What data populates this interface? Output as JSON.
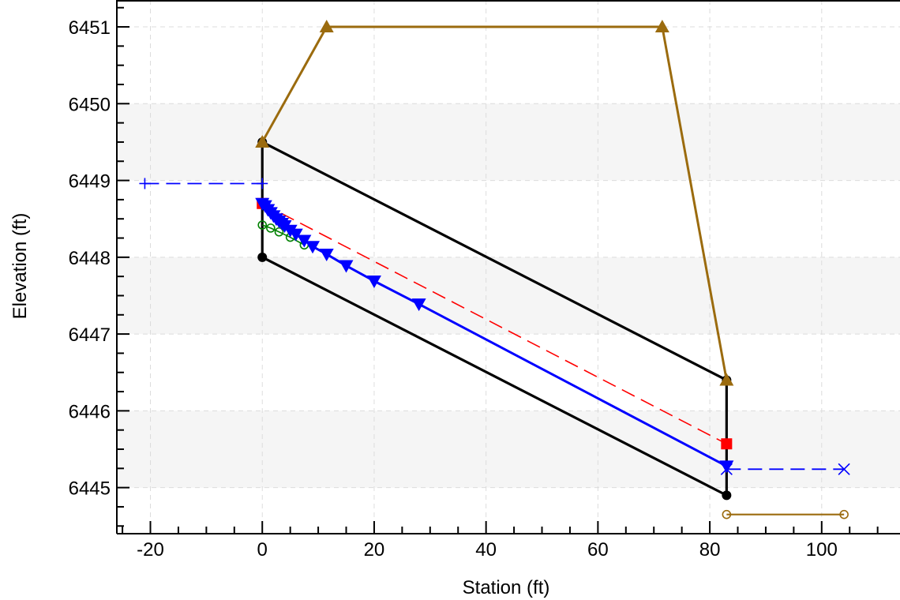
{
  "chart_data": {
    "type": "line",
    "title": "",
    "xlabel": "Station (ft)",
    "ylabel": "Elevation (ft)",
    "xlim": [
      -26,
      114
    ],
    "ylim": [
      6444.4,
      6451.35
    ],
    "xticks": [
      -20,
      0,
      20,
      40,
      60,
      80,
      100
    ],
    "yticks": [
      6445,
      6446,
      6447,
      6448,
      6449,
      6450,
      6451
    ],
    "xtick_labels": [
      "-20",
      "0",
      "20",
      "40",
      "60",
      "80",
      "100"
    ],
    "ytick_labels": [
      "6445",
      "6446",
      "6447",
      "6448",
      "6449",
      "6450",
      "6451"
    ],
    "grid": true,
    "legend": "none",
    "colors": {
      "culvert": "#000000",
      "embankment": "#9b6b0e",
      "energy_grade": "#ff0000",
      "water_surface": "#0000ff",
      "critical_depth": "#008000",
      "headwater": "#0000ff",
      "tailwater": "#0000ff",
      "outlet_channel": "#9b6b0e",
      "band": "#f5f5f5",
      "grid": "#dcdcdc"
    },
    "series": [
      {
        "key": "culvert_outline",
        "style": "solid",
        "marker": "circle",
        "color": "#000000",
        "x": [
          0,
          0,
          83,
          83,
          0
        ],
        "y": [
          6449.5,
          6448.0,
          6444.9,
          6446.4,
          6449.5
        ],
        "marker_points": [
          [
            0,
            6449.5
          ],
          [
            0,
            6448.0
          ],
          [
            83,
            6444.9
          ],
          [
            83,
            6446.4
          ]
        ]
      },
      {
        "key": "embankment_crest",
        "style": "solid",
        "marker": "triangle-up",
        "color": "#9b6b0e",
        "x": [
          0,
          11.5,
          71.5,
          83
        ],
        "y": [
          6449.5,
          6451.0,
          6451.0,
          6446.4
        ]
      },
      {
        "key": "energy_grade_line",
        "style": "dashed",
        "marker": "square",
        "color": "#ff0000",
        "x": [
          0,
          83
        ],
        "y": [
          6448.7,
          6445.57
        ],
        "marker_points": [
          [
            0,
            6448.7
          ],
          [
            83,
            6445.57
          ]
        ]
      },
      {
        "key": "water_surface_profile",
        "style": "solid",
        "marker": "triangle-down",
        "color": "#0000ff",
        "x": [
          0,
          0.5,
          1,
          1.5,
          2,
          2.5,
          3,
          3.5,
          4,
          5,
          6,
          7.5,
          9,
          11.5,
          15,
          20,
          28,
          83
        ],
        "y": [
          6448.7,
          6448.67,
          6448.62,
          6448.58,
          6448.54,
          6448.5,
          6448.47,
          6448.44,
          6448.41,
          6448.35,
          6448.3,
          6448.22,
          6448.14,
          6448.04,
          6447.89,
          6447.69,
          6447.39,
          6445.28
        ]
      },
      {
        "key": "critical_depth_line",
        "style": "solid",
        "marker": "circle-open",
        "color": "#008000",
        "x": [
          0,
          1.5,
          3,
          5,
          7.5
        ],
        "y": [
          6448.42,
          6448.38,
          6448.33,
          6448.26,
          6448.16
        ]
      },
      {
        "key": "headwater",
        "style": "dashed",
        "marker": "plus",
        "color": "#0000ff",
        "x": [
          -21,
          0
        ],
        "y": [
          6448.96,
          6448.96
        ]
      },
      {
        "key": "tailwater",
        "style": "dashed",
        "marker": "x",
        "color": "#0000ff",
        "x": [
          83,
          104
        ],
        "y": [
          6445.24,
          6445.24
        ]
      },
      {
        "key": "outlet_channel",
        "style": "solid",
        "marker": "circle-open",
        "color": "#9b6b0e",
        "x": [
          83,
          104
        ],
        "y": [
          6444.65,
          6444.65
        ]
      }
    ]
  }
}
